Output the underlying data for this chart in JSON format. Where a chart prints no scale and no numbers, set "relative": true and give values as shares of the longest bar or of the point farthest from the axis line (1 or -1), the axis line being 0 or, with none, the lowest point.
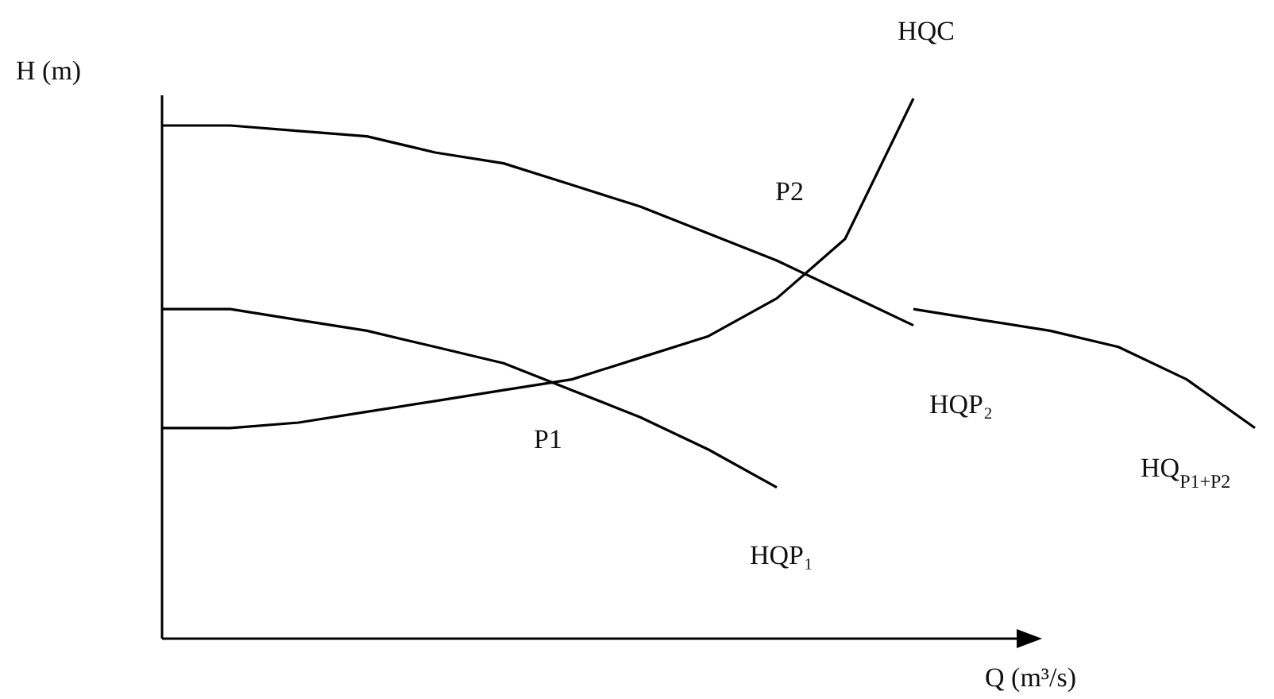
{
  "chart_data": {
    "type": "line",
    "relative": true,
    "xlabel": "Q (m³/s)",
    "ylabel": "H (m)",
    "marker": "none",
    "line_style": "solid",
    "categories": [
      null,
      null,
      null,
      null,
      null,
      null,
      null,
      null,
      null,
      null,
      null,
      null,
      null,
      null,
      null,
      null,
      null
    ],
    "series": [
      {
        "name": "HQC",
        "color": "#000000",
        "values": [
          0.39,
          0.39,
          0.4,
          0.42,
          0.44,
          0.46,
          0.48,
          0.52,
          0.56,
          0.63,
          0.74,
          1.0,
          null,
          null,
          null,
          null,
          null
        ]
      },
      {
        "name": "HQP₂",
        "color": "#000000",
        "values": [
          0.95,
          0.95,
          0.94,
          0.93,
          0.9,
          0.88,
          0.84,
          0.8,
          0.75,
          0.7,
          0.64,
          0.58,
          null,
          null,
          null,
          null,
          null
        ]
      },
      {
        "name": "HQP₁",
        "color": "#000000",
        "values": [
          0.61,
          0.61,
          0.59,
          0.57,
          0.54,
          0.51,
          0.46,
          0.41,
          0.35,
          0.28,
          null,
          null,
          null,
          null,
          null,
          null,
          null
        ]
      },
      {
        "name": "HQ$_{P1+P2}$",
        "color": "#000000",
        "values": [
          null,
          null,
          null,
          null,
          null,
          null,
          null,
          null,
          null,
          null,
          null,
          0.61,
          0.59,
          0.57,
          0.54,
          0.48,
          0.39
        ]
      }
    ],
    "annotations": [
      "P2",
      "P1"
    ]
  }
}
